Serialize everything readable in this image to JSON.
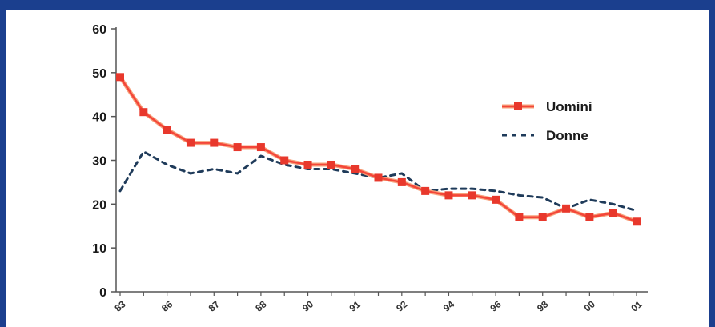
{
  "chart_data": {
    "type": "line",
    "title": "",
    "xlabel": "",
    "ylabel": "",
    "ylim": [
      0,
      60
    ],
    "yticks": [
      0,
      10,
      20,
      30,
      40,
      50,
      60
    ],
    "x_tick_labels": [
      "83",
      "86",
      "87",
      "88",
      "90",
      "91",
      "92",
      "94",
      "96",
      "98",
      "00",
      "01"
    ],
    "grid": false,
    "legend_position": "right",
    "series": [
      {
        "name": "Uomini",
        "color": "#f4463a",
        "style": "solid-with-markers",
        "values": [
          49,
          41,
          37,
          34,
          34,
          33,
          33,
          30,
          29,
          29,
          28,
          26,
          25,
          23,
          22,
          22,
          21,
          17,
          17,
          19,
          17,
          18,
          16
        ]
      },
      {
        "name": "Donne",
        "color": "#1f3b5a",
        "style": "dashed",
        "values": [
          23,
          32,
          29,
          27,
          28,
          27,
          31,
          29,
          28,
          28,
          27,
          26,
          27,
          23,
          23.5,
          23.5,
          23,
          22,
          21.5,
          19,
          21,
          20,
          18.5
        ]
      }
    ]
  }
}
